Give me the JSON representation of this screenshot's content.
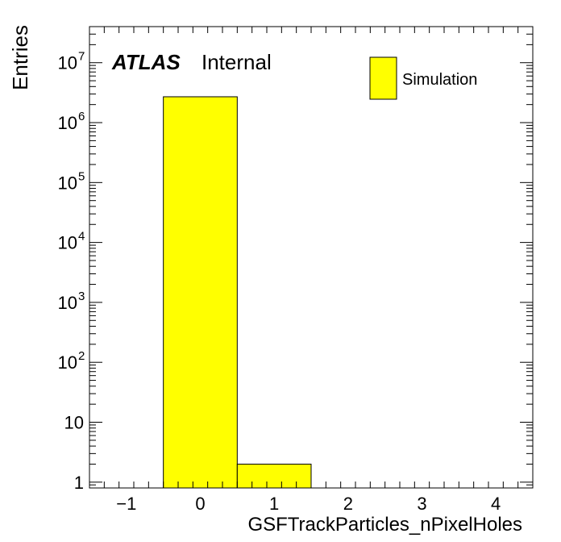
{
  "chart_data": {
    "type": "bar",
    "histogram": true,
    "xlabel": "GSFTrackParticles_nPixelHoles",
    "ylabel": "Entries",
    "xlim": [
      -1.5,
      4.5
    ],
    "ylim": [
      0.8,
      40000000
    ],
    "yscale": "log",
    "grid": false,
    "legend_position": "top-right",
    "x_ticks": [
      {
        "value": -1,
        "label": "−1"
      },
      {
        "value": 0,
        "label": "0"
      },
      {
        "value": 1,
        "label": "1"
      },
      {
        "value": 2,
        "label": "2"
      },
      {
        "value": 3,
        "label": "3"
      },
      {
        "value": 4,
        "label": "4"
      }
    ],
    "y_ticks": [
      {
        "value": 1,
        "base": "1",
        "exp": ""
      },
      {
        "value": 10,
        "base": "10",
        "exp": ""
      },
      {
        "value": 100,
        "base": "10",
        "exp": "2"
      },
      {
        "value": 1000,
        "base": "10",
        "exp": "3"
      },
      {
        "value": 10000,
        "base": "10",
        "exp": "4"
      },
      {
        "value": 100000,
        "base": "10",
        "exp": "5"
      },
      {
        "value": 1000000,
        "base": "10",
        "exp": "6"
      },
      {
        "value": 10000000,
        "base": "10",
        "exp": "7"
      }
    ],
    "bins": [
      {
        "low": -0.5,
        "high": 0.5,
        "value": 2700000
      },
      {
        "low": 0.5,
        "high": 1.5,
        "value": 2
      }
    ],
    "series": [
      {
        "name": "Simulation",
        "color": "#ffff00",
        "edge_color": "#000000"
      }
    ],
    "annotations": {
      "experiment": "ATLAS",
      "status": "Internal"
    }
  }
}
